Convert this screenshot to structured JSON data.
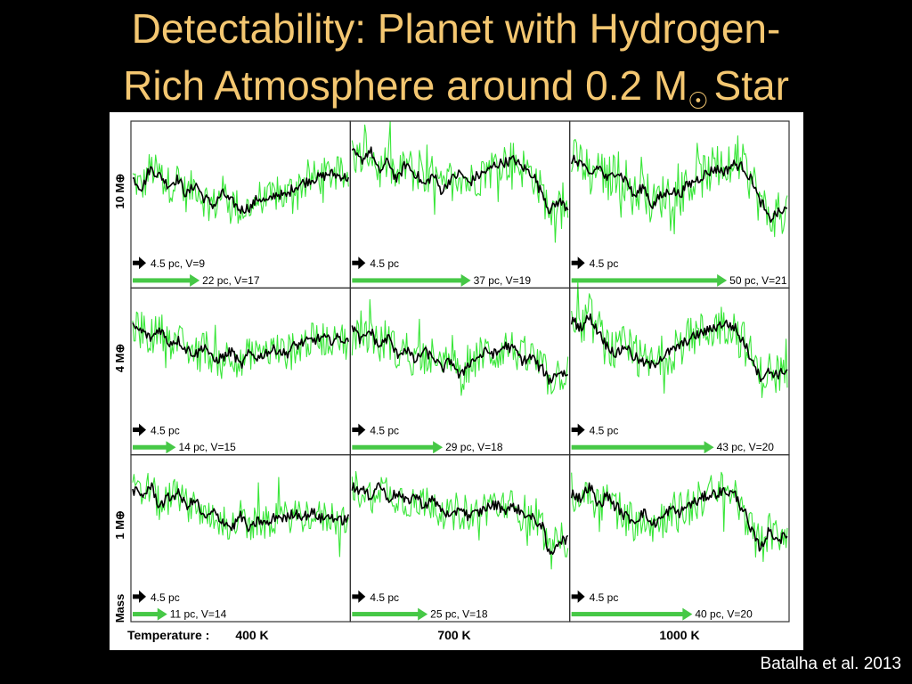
{
  "title": {
    "line1": "Detectability: Planet with Hydrogen-",
    "line2_pre": "Rich Atmosphere around 0.2 M",
    "line2_sub": "☉",
    "line2_post": "Star"
  },
  "credit": "Batalha et al. 2013",
  "chart_data": {
    "type": "line",
    "layout": "3x3 panel grid (rows = planet mass, columns = temperature)",
    "y_axis_title": "Mass",
    "x_axis_title": "Temperature :",
    "grid": false,
    "colors": {
      "noisy": "#39e639",
      "model": "#000000",
      "arrow_green": "#46c846",
      "arrow_black": "#000000"
    },
    "rows": [
      "10 M⊕",
      "4 M⊕",
      "1 M⊕"
    ],
    "columns": [
      "400 K",
      "700 K",
      "1000 K"
    ],
    "panels": [
      {
        "row": 0,
        "col": 0,
        "black_label": "4.5 pc, V=9",
        "green_label": "22 pc, V=17",
        "green_arrow_len": 0.31,
        "model": [
          0.55,
          0.48,
          0.64,
          0.58,
          0.5,
          0.55,
          0.42,
          0.5,
          0.38,
          0.32,
          0.42,
          0.35,
          0.28,
          0.3,
          0.38,
          0.35,
          0.42,
          0.4,
          0.48,
          0.52,
          0.55,
          0.57,
          0.6,
          0.58,
          0.56
        ]
      },
      {
        "row": 0,
        "col": 1,
        "black_label": "4.5 pc",
        "green_label": "37 pc, V=19",
        "green_arrow_len": 0.55,
        "model": [
          0.78,
          0.72,
          0.8,
          0.62,
          0.7,
          0.55,
          0.68,
          0.6,
          0.5,
          0.58,
          0.45,
          0.55,
          0.6,
          0.52,
          0.58,
          0.62,
          0.68,
          0.7,
          0.72,
          0.65,
          0.6,
          0.45,
          0.28,
          0.35,
          0.3
        ]
      },
      {
        "row": 0,
        "col": 2,
        "black_label": "4.5 pc",
        "green_label": "50 pc, V=21",
        "green_arrow_len": 0.72,
        "model": [
          0.72,
          0.7,
          0.58,
          0.66,
          0.55,
          0.62,
          0.55,
          0.4,
          0.48,
          0.32,
          0.4,
          0.45,
          0.42,
          0.5,
          0.55,
          0.6,
          0.64,
          0.62,
          0.68,
          0.66,
          0.55,
          0.35,
          0.2,
          0.25,
          0.28
        ]
      },
      {
        "row": 1,
        "col": 0,
        "black_label": "4.5 pc",
        "green_label": "14 pc, V=15",
        "green_arrow_len": 0.2,
        "model": [
          0.72,
          0.68,
          0.62,
          0.7,
          0.58,
          0.6,
          0.52,
          0.48,
          0.55,
          0.42,
          0.45,
          0.5,
          0.38,
          0.48,
          0.45,
          0.5,
          0.52,
          0.48,
          0.55,
          0.58,
          0.6,
          0.62,
          0.6,
          0.62,
          0.58
        ]
      },
      {
        "row": 1,
        "col": 1,
        "black_label": "4.5 pc",
        "green_label": "29 pc, V=18",
        "green_arrow_len": 0.42,
        "model": [
          0.72,
          0.6,
          0.68,
          0.55,
          0.62,
          0.48,
          0.52,
          0.42,
          0.5,
          0.45,
          0.35,
          0.42,
          0.28,
          0.4,
          0.45,
          0.5,
          0.48,
          0.55,
          0.52,
          0.42,
          0.45,
          0.35,
          0.25,
          0.32,
          0.3
        ]
      },
      {
        "row": 1,
        "col": 2,
        "black_label": "4.5 pc",
        "green_label": "43 pc, V=20",
        "green_arrow_len": 0.66,
        "model": [
          0.78,
          0.72,
          0.8,
          0.68,
          0.55,
          0.48,
          0.55,
          0.45,
          0.4,
          0.38,
          0.45,
          0.5,
          0.55,
          0.6,
          0.65,
          0.68,
          0.72,
          0.75,
          0.72,
          0.6,
          0.45,
          0.28,
          0.32,
          0.3,
          0.34
        ]
      },
      {
        "row": 2,
        "col": 0,
        "black_label": "4.5 pc",
        "green_label": "11 pc, V=14",
        "green_arrow_len": 0.16,
        "model": [
          0.75,
          0.7,
          0.78,
          0.62,
          0.68,
          0.72,
          0.62,
          0.65,
          0.5,
          0.55,
          0.48,
          0.42,
          0.52,
          0.4,
          0.48,
          0.45,
          0.52,
          0.5,
          0.55,
          0.52,
          0.55,
          0.5,
          0.52,
          0.48,
          0.5
        ]
      },
      {
        "row": 2,
        "col": 1,
        "black_label": "4.5 pc",
        "green_label": "25 pc, V=18",
        "green_arrow_len": 0.35,
        "model": [
          0.78,
          0.75,
          0.7,
          0.8,
          0.68,
          0.72,
          0.65,
          0.7,
          0.62,
          0.66,
          0.58,
          0.5,
          0.6,
          0.52,
          0.55,
          0.6,
          0.62,
          0.58,
          0.6,
          0.55,
          0.5,
          0.45,
          0.18,
          0.3,
          0.32
        ]
      },
      {
        "row": 2,
        "col": 2,
        "black_label": "4.5 pc",
        "green_label": "40 pc, V=20",
        "green_arrow_len": 0.56,
        "model": [
          0.72,
          0.68,
          0.78,
          0.62,
          0.7,
          0.6,
          0.52,
          0.48,
          0.55,
          0.45,
          0.5,
          0.58,
          0.55,
          0.62,
          0.65,
          0.7,
          0.72,
          0.74,
          0.72,
          0.6,
          0.38,
          0.25,
          0.38,
          0.32,
          0.34
        ]
      }
    ]
  }
}
